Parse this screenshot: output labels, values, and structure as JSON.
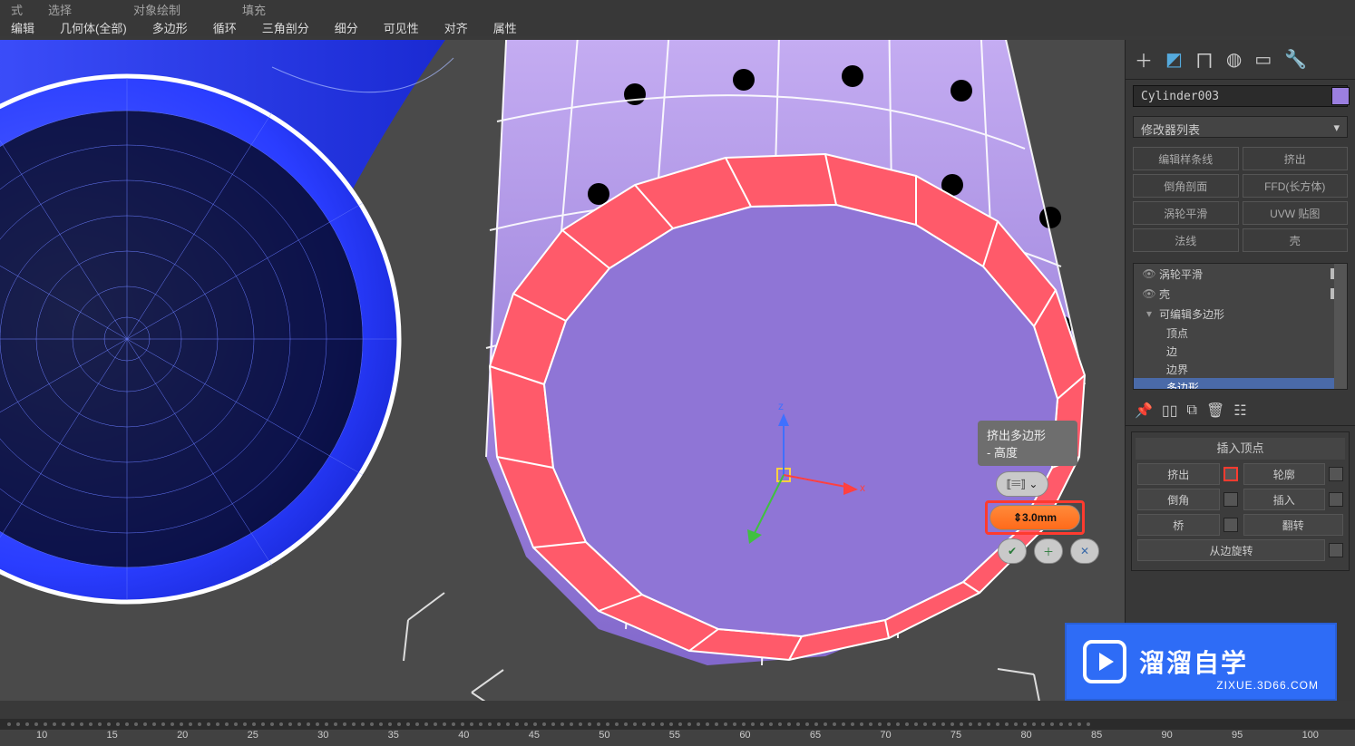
{
  "menus": {
    "top": [
      "式",
      "选择",
      "对象绘制",
      "填充"
    ],
    "main": [
      "编辑",
      "几何体(全部)",
      "多边形",
      "循环",
      "三角剖分",
      "细分",
      "可见性",
      "对齐",
      "属性"
    ]
  },
  "ruler": {
    "ticks": [
      "10",
      "15",
      "20",
      "25",
      "30",
      "35",
      "40",
      "45",
      "50",
      "55",
      "60",
      "65",
      "70",
      "75",
      "80",
      "85",
      "90",
      "95",
      "100"
    ]
  },
  "side": {
    "object_name": "Cylinder003",
    "modifier_list_label": "修改器列表",
    "quick_buttons": [
      [
        "编辑样条线",
        "挤出"
      ],
      [
        "倒角剖面",
        "FFD(长方体)"
      ],
      [
        "涡轮平滑",
        "UVW 贴图"
      ],
      [
        "法线",
        "壳"
      ]
    ],
    "stack": {
      "items": [
        {
          "label": "涡轮平滑",
          "eye": true,
          "chk": true
        },
        {
          "label": "壳",
          "eye": true,
          "chk": true
        },
        {
          "label": "可编辑多边形",
          "expandable": true
        }
      ],
      "subs": [
        "顶点",
        "边",
        "边界",
        "多边形"
      ],
      "selected_sub": "多边形"
    },
    "section_title": "插入顶点",
    "ops": [
      {
        "l": "挤出",
        "lsq": true,
        "lhi": true,
        "r": "轮廓",
        "rsq": true
      },
      {
        "l": "倒角",
        "lsq": true,
        "r": "插入",
        "rsq": true
      },
      {
        "l": "桥",
        "lsq": true,
        "r": "翻转"
      },
      {
        "full": "从边旋转",
        "rsq": true
      }
    ]
  },
  "caddy": {
    "tooltip_l1": "挤出多边形",
    "tooltip_l2": "- 高度",
    "value": "3.0mm"
  },
  "watermark": {
    "brand": "溜溜自学",
    "url": "ZIXUE.3D66.COM"
  },
  "viewport": {
    "background": "#4a4a4a",
    "left_cylinder": {
      "fill": "#2a3dff",
      "wire": "#9bb8ff",
      "edge_color": "#ffffff"
    },
    "center_cylinder": {
      "body_fill_light": "#c2a8f0",
      "body_fill_dark": "#7a5fc2",
      "wire": "#ffffff",
      "ring_fill": "#ff5a6a",
      "cap_fill": "#9079d4",
      "gap_fill": "#000000"
    },
    "gizmo": {
      "x": "#ff4040",
      "y": "#40ff40",
      "z": "#4070ff",
      "box": "#ffd040"
    },
    "caddy_pill_bg": "#c9c9c9",
    "caddy_icons": {
      "ok": "#6aa0d8",
      "add": "#6aa0d8",
      "cancel": "#6aa0d8"
    }
  }
}
